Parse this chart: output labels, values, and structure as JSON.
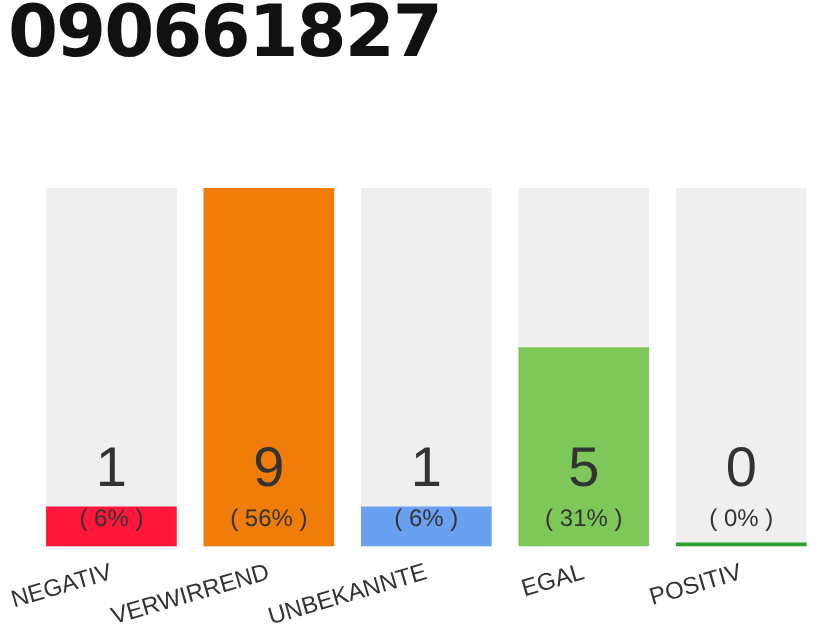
{
  "chart_data": {
    "type": "bar",
    "title": "090661827",
    "categories": [
      "NEGATIV",
      "VERWIRREND",
      "UNBEKANNTE",
      "EGAL",
      "POSITIV"
    ],
    "values": [
      1,
      9,
      1,
      5,
      0
    ],
    "colors": [
      "#ff163a",
      "#f07d0a",
      "#6aa0f0",
      "#7ec85a",
      "#2ca02c"
    ],
    "value_labels": [
      "1\n( 6% )",
      "9\n( 56% )",
      "1\n( 6% )",
      "5\n( 31% )",
      "0\n( 0% )"
    ],
    "ylim": [
      0,
      9
    ],
    "tick_labels": "x",
    "grid": false,
    "legend": false
  }
}
